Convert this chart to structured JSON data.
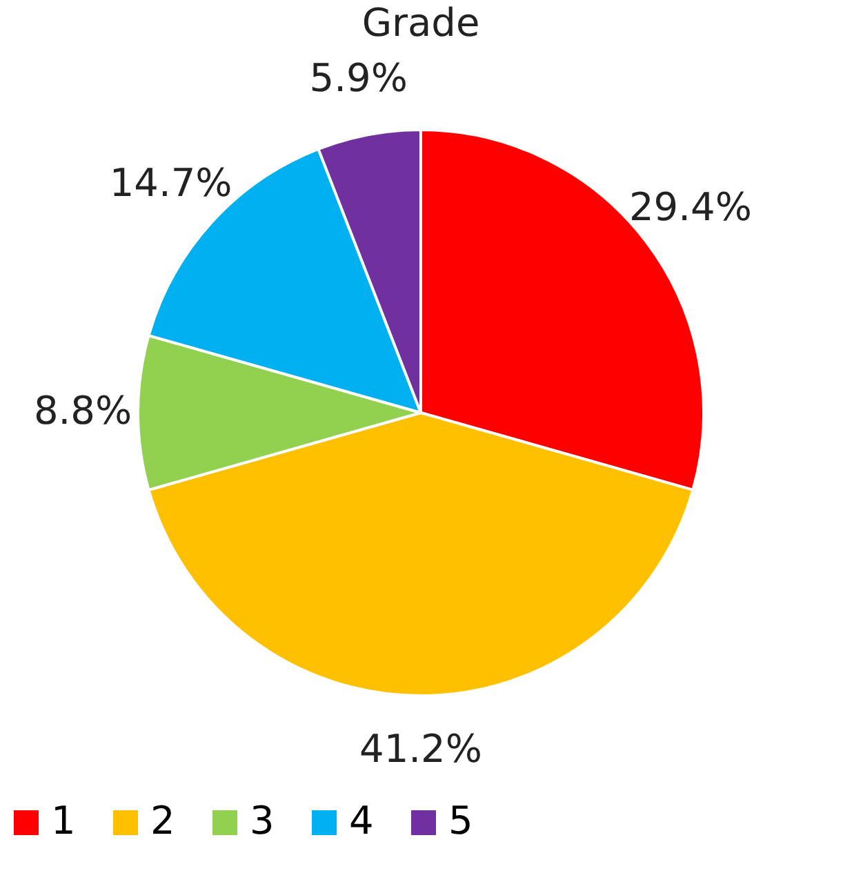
{
  "chart_data": {
    "type": "pie",
    "title": "Grade",
    "categories": [
      "1",
      "2",
      "3",
      "4",
      "5"
    ],
    "values": [
      29.4,
      41.2,
      8.8,
      14.7,
      5.9
    ],
    "value_labels": [
      "29.4%",
      "41.2%",
      "8.8%",
      "14.7%",
      "5.9%"
    ],
    "colors": [
      "#ff0000",
      "#ffc000",
      "#92d050",
      "#00b0f0",
      "#7030a0"
    ],
    "legend": "bottom"
  }
}
